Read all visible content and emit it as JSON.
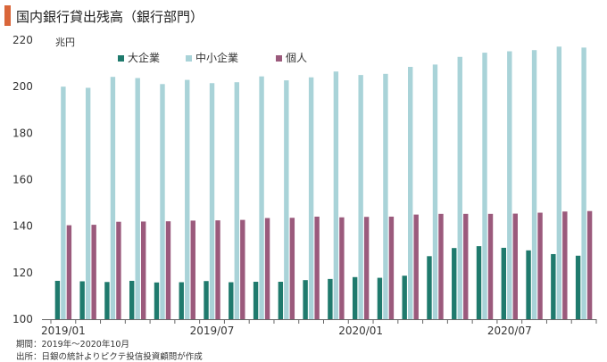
{
  "title": "国内銀行貸出残高（銀行部門）",
  "unit": "兆円",
  "notes": {
    "period": "期間：2019年～2020年10月",
    "source": "出所：日銀の統計よりピクテ投信投資顧問が作成"
  },
  "colors": {
    "large": "#1f7a6d",
    "sme": "#a9d3d8",
    "individual": "#9b5a7c",
    "axis": "#666666",
    "title_bar": "#d9663a"
  },
  "chart_data": {
    "type": "bar",
    "title": "国内銀行貸出残高（銀行部門）",
    "ylabel": "兆円",
    "ylim": [
      100,
      220
    ],
    "yticks": [
      100,
      120,
      140,
      160,
      180,
      200,
      220
    ],
    "x_tick_labels": [
      "2019/01",
      "2019/07",
      "2020/01",
      "2020/07"
    ],
    "x_tick_indices": [
      0,
      6,
      12,
      18
    ],
    "legend_position": "top",
    "categories": [
      "2019/01",
      "2019/02",
      "2019/03",
      "2019/04",
      "2019/05",
      "2019/06",
      "2019/07",
      "2019/08",
      "2019/09",
      "2019/10",
      "2019/11",
      "2019/12",
      "2020/01",
      "2020/02",
      "2020/03",
      "2020/04",
      "2020/05",
      "2020/06",
      "2020/07",
      "2020/08",
      "2020/09",
      "2020/10"
    ],
    "series": [
      {
        "name": "大企業",
        "values": [
          116.5,
          116.3,
          116,
          116.5,
          115.8,
          115.9,
          116.4,
          115.9,
          116.1,
          116.1,
          116.8,
          117.3,
          118.1,
          117.8,
          118.7,
          127.1,
          130.6,
          131.4,
          130.7,
          129.6,
          128,
          127.3
        ]
      },
      {
        "name": "中小企業",
        "values": [
          200,
          199.5,
          204.2,
          203.7,
          201.1,
          202.9,
          201.5,
          201.9,
          204.4,
          202.7,
          204,
          206.5,
          205,
          205.5,
          208.5,
          209.5,
          212.8,
          214.6,
          215.2,
          215.7,
          217.2,
          216.8
        ]
      },
      {
        "name": "個人",
        "values": [
          140.4,
          140.6,
          141.9,
          142,
          142.1,
          142.4,
          142.5,
          142.7,
          143.5,
          143.6,
          144.1,
          143.8,
          144,
          144.1,
          145,
          145.3,
          145.3,
          145.3,
          145.4,
          145.8,
          146.3,
          146.5
        ]
      }
    ]
  }
}
